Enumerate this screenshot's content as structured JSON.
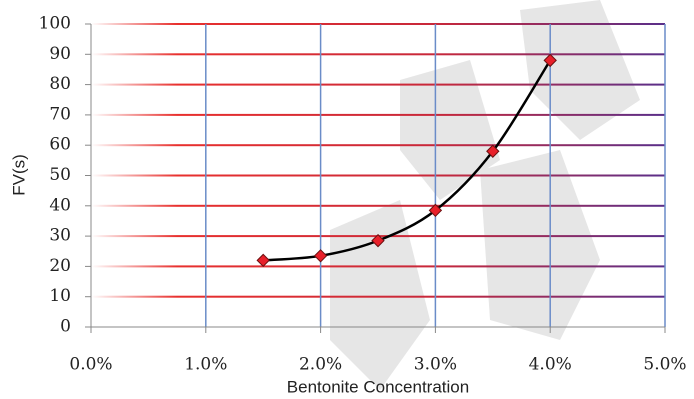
{
  "chart_data": {
    "type": "scatter",
    "x_label": "Bentonite Concentration",
    "y_label": "FV(s)",
    "x": [
      1.5,
      2.0,
      2.5,
      3.0,
      3.5,
      4.0
    ],
    "series": [
      {
        "values": [
          22,
          23.5,
          28.5,
          38.5,
          58,
          88
        ],
        "color": "#e8202a"
      }
    ],
    "line_color": "#000000",
    "smooth": true,
    "xlim": [
      0,
      5
    ],
    "ylim": [
      0,
      100
    ],
    "xticks": [
      {
        "value": 0,
        "label": "0.0%"
      },
      {
        "value": 1,
        "label": "1.0%"
      },
      {
        "value": 2,
        "label": "2.0%"
      },
      {
        "value": 3,
        "label": "3.0%"
      },
      {
        "value": 4,
        "label": "4.0%"
      },
      {
        "value": 5,
        "label": "5.0%"
      }
    ],
    "yticks": [
      0,
      10,
      20,
      30,
      40,
      50,
      60,
      70,
      80,
      90,
      100
    ],
    "grid": true
  }
}
